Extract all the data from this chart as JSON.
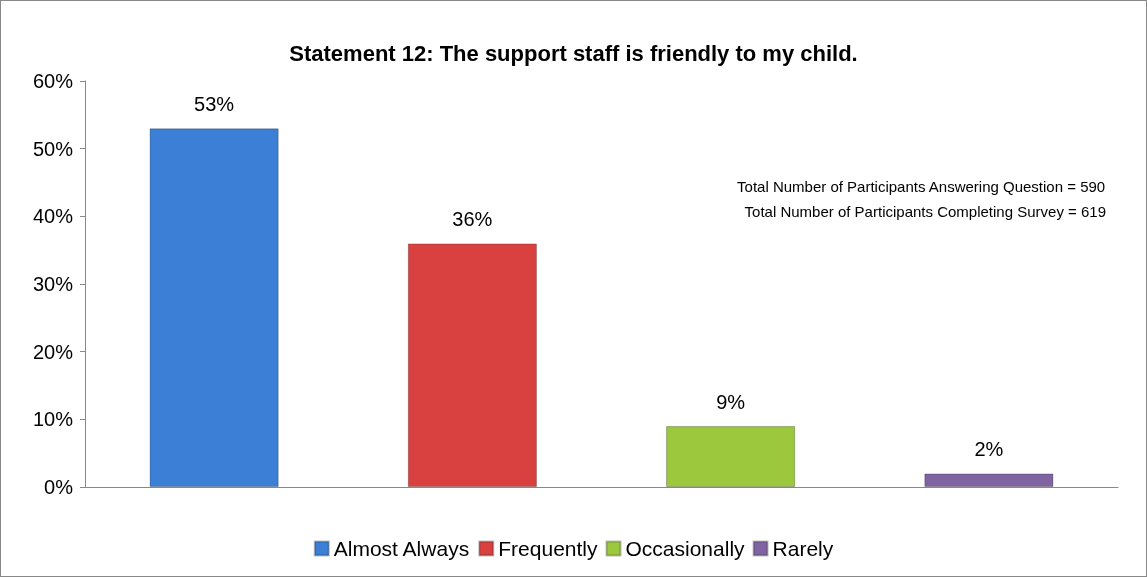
{
  "chart_data": {
    "type": "bar",
    "title": "Statement 12: The support staff is friendly to my child.",
    "categories": [
      null,
      null,
      null,
      null
    ],
    "series": [
      {
        "name": "Almost Always",
        "color": "#3b7fd6",
        "values": [
          53,
          null,
          null,
          null
        ],
        "value_labels": [
          "53%",
          null,
          null,
          null
        ]
      },
      {
        "name": "Frequently",
        "color": "#d94141",
        "values": [
          null,
          36,
          null,
          null
        ],
        "value_labels": [
          null,
          "36%",
          null,
          null
        ]
      },
      {
        "name": "Occasionally",
        "color": "#9bc83c",
        "values": [
          null,
          null,
          9,
          null
        ],
        "value_labels": [
          null,
          null,
          "9%",
          null
        ]
      },
      {
        "name": "Rarely",
        "color": "#8064a2",
        "values": [
          null,
          null,
          null,
          2
        ],
        "value_labels": [
          null,
          null,
          null,
          "2%"
        ]
      }
    ],
    "ylim": [
      0,
      60
    ],
    "yticks": [
      {
        "value": 0,
        "label": "0%"
      },
      {
        "value": 10,
        "label": "10%"
      },
      {
        "value": 20,
        "label": "20%"
      },
      {
        "value": 30,
        "label": "30%"
      },
      {
        "value": 40,
        "label": "40%"
      },
      {
        "value": 50,
        "label": "50%"
      },
      {
        "value": 60,
        "label": "60%"
      }
    ],
    "grid": false,
    "legend": "bottom",
    "annotations": [
      "Total Number of Participants Answering Question = 590",
      "Total Number of Participants Completing Survey = 619"
    ]
  }
}
